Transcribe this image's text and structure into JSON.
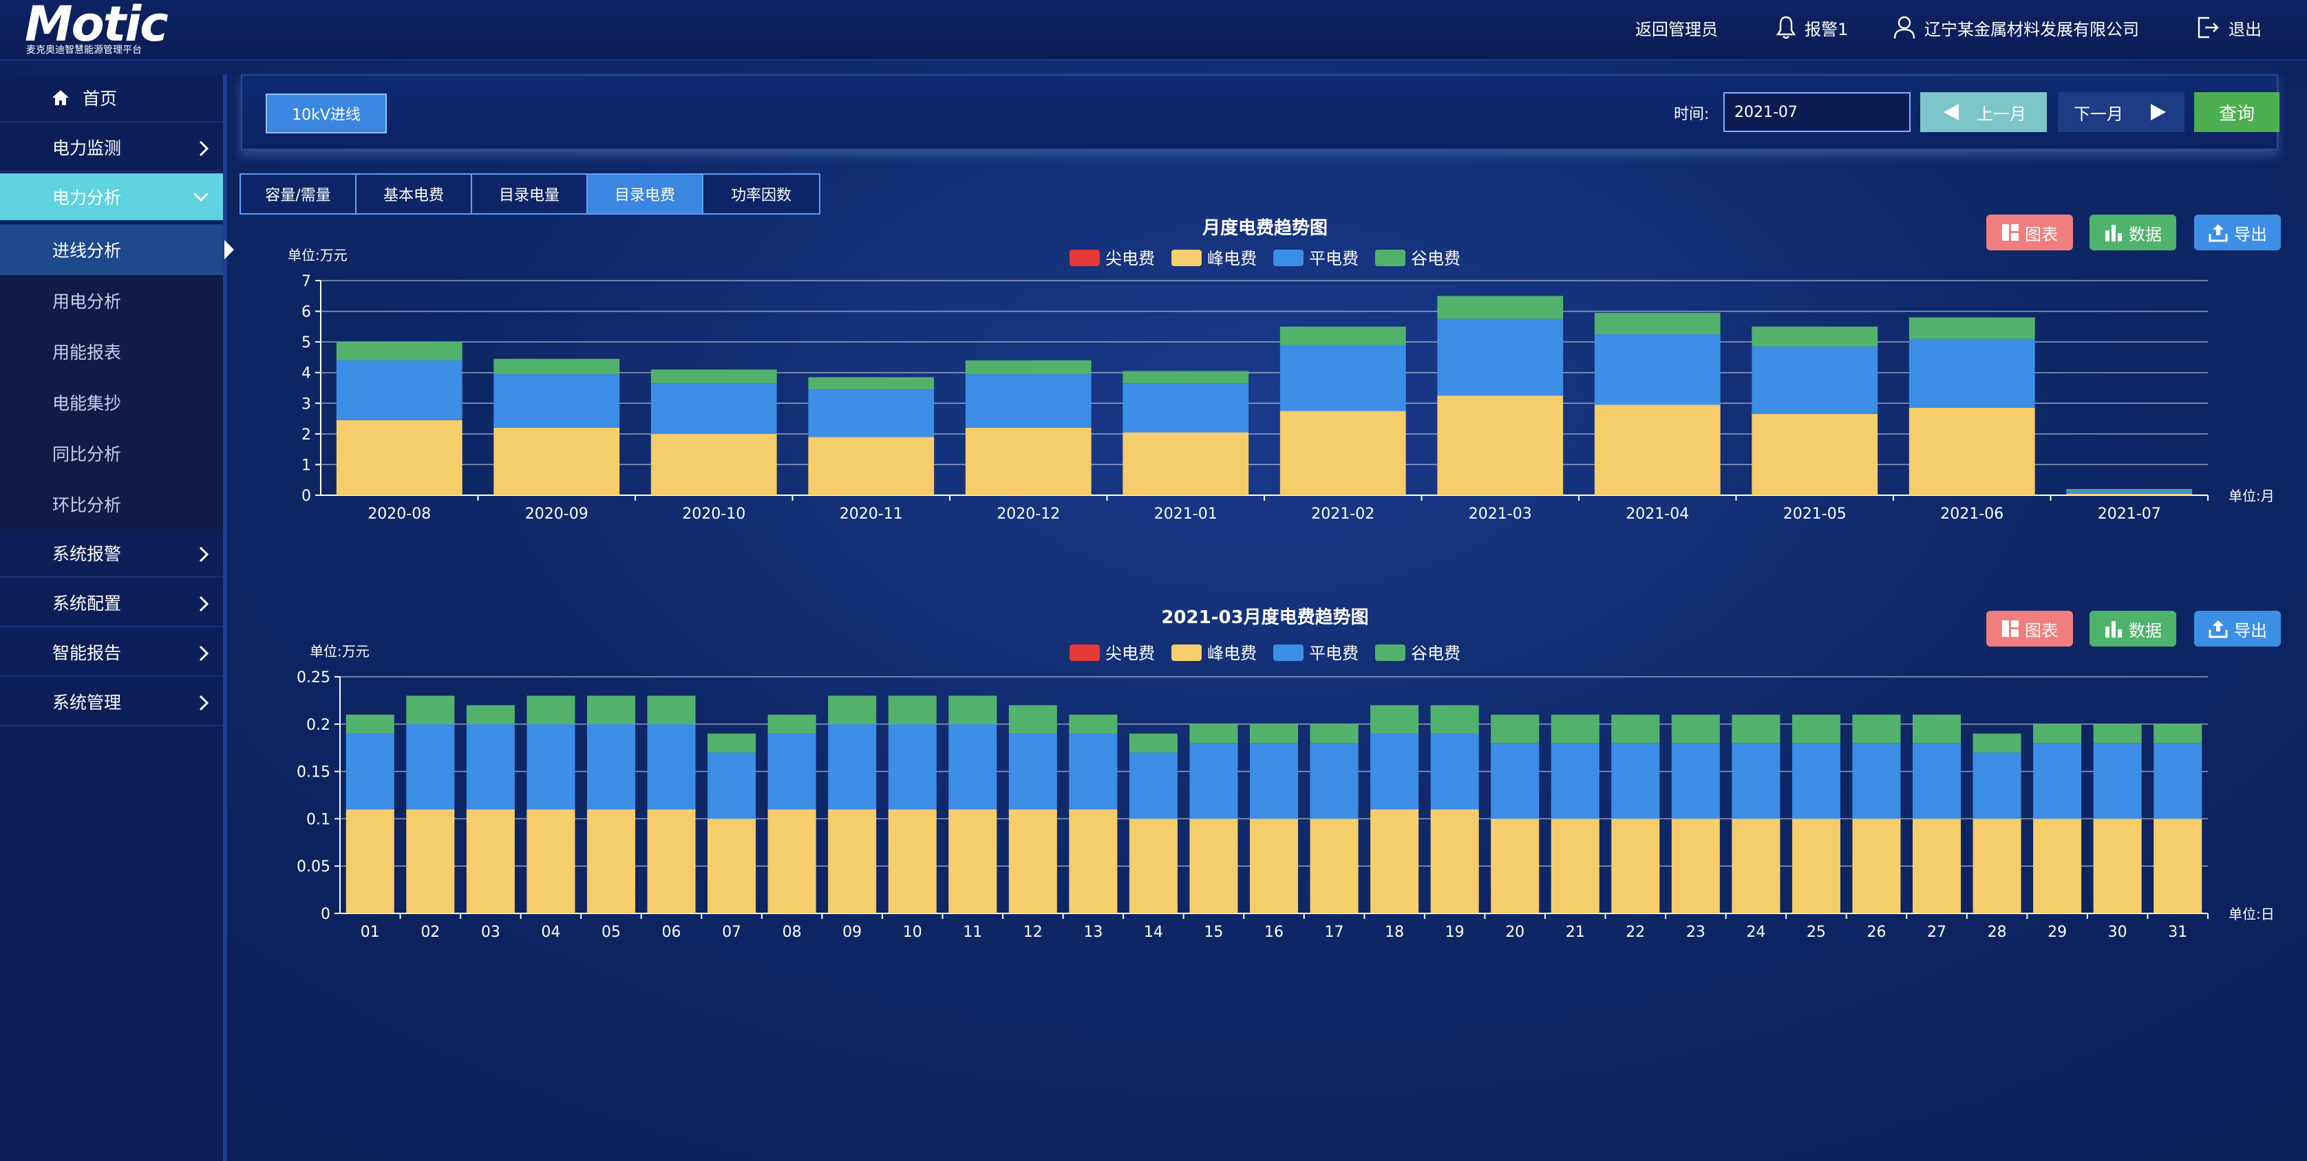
{
  "header": {
    "logo_title": "Motic",
    "logo_subtitle": "麦克奥迪智慧能源管理平台",
    "back_admin": "返回管理员",
    "alarm": "报警1",
    "company": "辽宁某金属材料发展有限公司",
    "logout": "退出"
  },
  "sidebar": {
    "home": "首页",
    "items": [
      {
        "label": "电力监测"
      },
      {
        "label": "电力分析"
      }
    ],
    "sub_items": [
      {
        "label": "进线分析"
      },
      {
        "label": "用电分析"
      },
      {
        "label": "用能报表"
      },
      {
        "label": "电能集抄"
      },
      {
        "label": "同比分析"
      },
      {
        "label": "环比分析"
      }
    ],
    "more_items": [
      {
        "label": "系统报警"
      },
      {
        "label": "系统配置"
      },
      {
        "label": "智能报告"
      },
      {
        "label": "系统管理"
      }
    ]
  },
  "controls": {
    "line_button": "10kV进线",
    "time_label": "时间:",
    "time_value": "2021-07",
    "prev_month": "上一月",
    "next_month": "下一月",
    "query": "查询"
  },
  "tabs": [
    {
      "label": "容量/需量"
    },
    {
      "label": "基本电费"
    },
    {
      "label": "目录电量"
    },
    {
      "label": "目录电费",
      "active": true
    },
    {
      "label": "功率因数"
    }
  ],
  "chart_buttons": {
    "chart": "图表",
    "data": "数据",
    "export": "导出"
  },
  "colors": {
    "sharp": "#e53935",
    "peak": "#f6cd6b",
    "flat": "#3c8ee6",
    "valley": "#52b26b"
  },
  "chart_data": [
    {
      "type": "bar",
      "stacked": true,
      "title": "月度电费趋势图",
      "ylabel": "单位:万元",
      "xlabel": "单位:月",
      "ylim": [
        0,
        7
      ],
      "yticks": [
        0,
        1,
        2,
        3,
        4,
        5,
        6,
        7
      ],
      "legend": [
        "尖电费",
        "峰电费",
        "平电费",
        "谷电费"
      ],
      "categories": [
        "2020-08",
        "2020-09",
        "2020-10",
        "2020-11",
        "2020-12",
        "2021-01",
        "2021-02",
        "2021-03",
        "2021-04",
        "2021-05",
        "2021-06",
        "2021-07"
      ],
      "series": [
        {
          "name": "尖电费",
          "values": [
            0,
            0,
            0,
            0,
            0,
            0,
            0,
            0,
            0,
            0,
            0,
            0
          ]
        },
        {
          "name": "峰电费",
          "values": [
            2.45,
            2.2,
            2.0,
            1.9,
            2.2,
            2.05,
            2.75,
            3.25,
            2.95,
            2.65,
            2.85,
            0.05
          ]
        },
        {
          "name": "平电费",
          "values": [
            1.95,
            1.75,
            1.65,
            1.55,
            1.75,
            1.6,
            2.15,
            2.5,
            2.3,
            2.2,
            2.25,
            0.1
          ]
        },
        {
          "name": "谷电费",
          "values": [
            0.6,
            0.5,
            0.45,
            0.4,
            0.45,
            0.4,
            0.6,
            0.75,
            0.7,
            0.65,
            0.7,
            0.05
          ]
        }
      ]
    },
    {
      "type": "bar",
      "stacked": true,
      "title": "2021-03月度电费趋势图",
      "ylabel": "单位:万元",
      "xlabel": "单位:日",
      "ylim": [
        0,
        0.25
      ],
      "yticks": [
        0,
        0.05,
        0.1,
        0.15,
        0.2,
        0.25
      ],
      "legend": [
        "尖电费",
        "峰电费",
        "平电费",
        "谷电费"
      ],
      "categories": [
        "01",
        "02",
        "03",
        "04",
        "05",
        "06",
        "07",
        "08",
        "09",
        "10",
        "11",
        "12",
        "13",
        "14",
        "15",
        "16",
        "17",
        "18",
        "19",
        "20",
        "21",
        "22",
        "23",
        "24",
        "25",
        "26",
        "27",
        "28",
        "29",
        "30",
        "31"
      ],
      "series": [
        {
          "name": "尖电费",
          "values": [
            0,
            0,
            0,
            0,
            0,
            0,
            0,
            0,
            0,
            0,
            0,
            0,
            0,
            0,
            0,
            0,
            0,
            0,
            0,
            0,
            0,
            0,
            0,
            0,
            0,
            0,
            0,
            0,
            0,
            0,
            0
          ]
        },
        {
          "name": "峰电费",
          "values": [
            0.11,
            0.11,
            0.11,
            0.11,
            0.11,
            0.11,
            0.1,
            0.11,
            0.11,
            0.11,
            0.11,
            0.11,
            0.11,
            0.1,
            0.1,
            0.1,
            0.1,
            0.11,
            0.11,
            0.1,
            0.1,
            0.1,
            0.1,
            0.1,
            0.1,
            0.1,
            0.1,
            0.1,
            0.1,
            0.1,
            0.1
          ]
        },
        {
          "name": "平电费",
          "values": [
            0.08,
            0.09,
            0.09,
            0.09,
            0.09,
            0.09,
            0.07,
            0.08,
            0.09,
            0.09,
            0.09,
            0.08,
            0.08,
            0.07,
            0.08,
            0.08,
            0.08,
            0.08,
            0.08,
            0.08,
            0.08,
            0.08,
            0.08,
            0.08,
            0.08,
            0.08,
            0.08,
            0.07,
            0.08,
            0.08,
            0.08
          ]
        },
        {
          "name": "谷电费",
          "values": [
            0.02,
            0.03,
            0.02,
            0.03,
            0.03,
            0.03,
            0.02,
            0.02,
            0.03,
            0.03,
            0.03,
            0.03,
            0.02,
            0.02,
            0.02,
            0.02,
            0.02,
            0.03,
            0.03,
            0.03,
            0.03,
            0.03,
            0.03,
            0.03,
            0.03,
            0.03,
            0.03,
            0.02,
            0.02,
            0.02,
            0.02
          ]
        }
      ]
    }
  ]
}
